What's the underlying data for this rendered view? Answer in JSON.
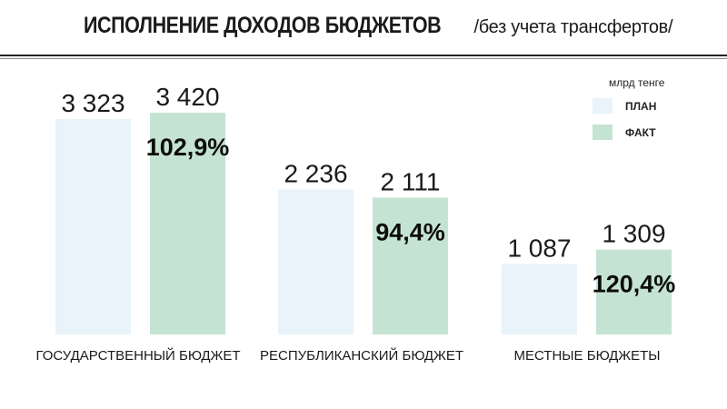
{
  "header": {
    "title": "ИСПОЛНЕНИЕ ДОХОДОВ БЮДЖЕТОВ",
    "subtitle": "/без учета трансфертов/"
  },
  "legend": {
    "units": "млрд тенге",
    "plan_label": "ПЛАН",
    "fact_label": "ФАКТ"
  },
  "colors": {
    "plan": "#e8f3fa",
    "fact": "#c5e3d2"
  },
  "chart_data": {
    "type": "bar",
    "categories": [
      "ГОСУДАРСТВЕННЫЙ БЮДЖЕТ",
      "РЕСПУБЛИКАНСКИЙ БЮДЖЕТ",
      "МЕСТНЫЕ БЮДЖЕТЫ"
    ],
    "series": [
      {
        "name": "ПЛАН",
        "values": [
          3323,
          2236,
          1087
        ],
        "labels": [
          "3 323",
          "2 236",
          "1 087"
        ]
      },
      {
        "name": "ФАКТ",
        "values": [
          3420,
          2111,
          1309
        ],
        "labels": [
          "3 420",
          "2 111",
          "1 309"
        ]
      }
    ],
    "percent_labels": [
      "102,9%",
      "94,4%",
      "120,4%"
    ],
    "ylim": [
      0,
      3420
    ],
    "legend_position": "top-right",
    "grid": false
  }
}
